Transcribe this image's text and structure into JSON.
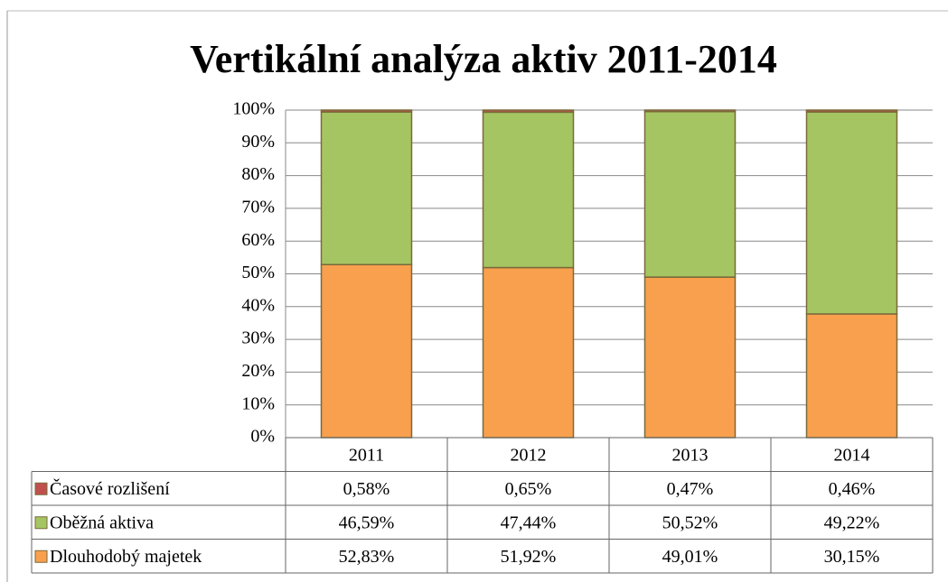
{
  "chart_data": {
    "type": "bar",
    "stacking": "percent",
    "title": "Vertikální analýza aktiv 2011-2014",
    "categories": [
      "2011",
      "2012",
      "2013",
      "2014"
    ],
    "series": [
      {
        "name": "Dlouhodobý majetek",
        "color": "#f9a04e",
        "values": [
          52.83,
          51.92,
          49.01,
          30.15
        ],
        "value_labels": [
          "52,83%",
          "51,92%",
          "49,01%",
          "30,15%"
        ]
      },
      {
        "name": "Oběžná aktiva",
        "color": "#a5c563",
        "values": [
          46.59,
          47.44,
          50.52,
          49.22
        ],
        "value_labels": [
          "46,59%",
          "47,44%",
          "50,52%",
          "49,22%"
        ]
      },
      {
        "name": "Časové rozlišení",
        "color": "#c0504d",
        "values": [
          0.58,
          0.65,
          0.47,
          0.46
        ],
        "value_labels": [
          "0,58%",
          "0,65%",
          "0,47%",
          "0,46%"
        ]
      }
    ],
    "ylim": [
      0,
      100
    ],
    "yticks": [
      {
        "value": 0,
        "label": "0%"
      },
      {
        "value": 10,
        "label": "10%"
      },
      {
        "value": 20,
        "label": "20%"
      },
      {
        "value": 30,
        "label": "30%"
      },
      {
        "value": 40,
        "label": "40%"
      },
      {
        "value": 50,
        "label": "50%"
      },
      {
        "value": 60,
        "label": "60%"
      },
      {
        "value": 70,
        "label": "70%"
      },
      {
        "value": 80,
        "label": "80%"
      },
      {
        "value": 90,
        "label": "90%"
      },
      {
        "value": 100,
        "label": "100%"
      }
    ],
    "grid": true,
    "data_table": true
  }
}
